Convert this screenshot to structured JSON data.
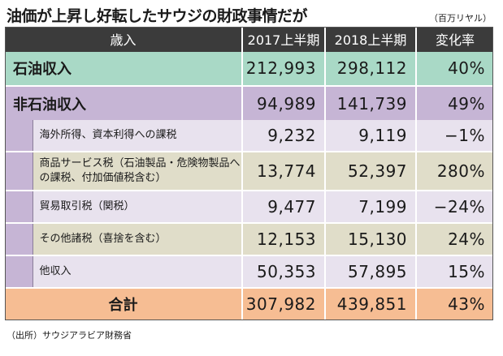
{
  "title": "油価が上昇し好転したサウジの財政事情だが",
  "unit": "（百万リヤル）",
  "header": {
    "item": "歳入",
    "col1": "2017上半期",
    "col2": "2018上半期",
    "col3": "変化率"
  },
  "rows": [
    {
      "label": "石油収入",
      "v2017": "212,993",
      "v2018": "298,112",
      "change": "40%"
    },
    {
      "label": "非石油収入",
      "v2017": "94,989",
      "v2018": "141,739",
      "change": "49%"
    },
    {
      "label": "海外所得、資本利得への課税",
      "v2017": "9,232",
      "v2018": "9,119",
      "change": "−1%"
    },
    {
      "label": "商品サービス税（石油製品・危険物製品への課税、付加価値税含む）",
      "v2017": "13,774",
      "v2018": "52,397",
      "change": "280%"
    },
    {
      "label": "貿易取引税（関税）",
      "v2017": "9,477",
      "v2018": "7,199",
      "change": "−24%"
    },
    {
      "label": "その他諸税（喜捨を含む）",
      "v2017": "12,153",
      "v2018": "15,130",
      "change": "24%"
    },
    {
      "label": "他収入",
      "v2017": "50,353",
      "v2018": "57,895",
      "change": "15%"
    },
    {
      "label": "合計",
      "v2017": "307,982",
      "v2018": "439,851",
      "change": "43%"
    }
  ],
  "source": "（出所）サウジアラビア財務省",
  "colors": {
    "header": "#3b3b3b",
    "oil": "#a9d9c6",
    "nonoil": "#c6b5d5",
    "sub_light": "#e8e2ee",
    "sub_alt": "#e0ddc9",
    "total": "#f6bd93"
  }
}
